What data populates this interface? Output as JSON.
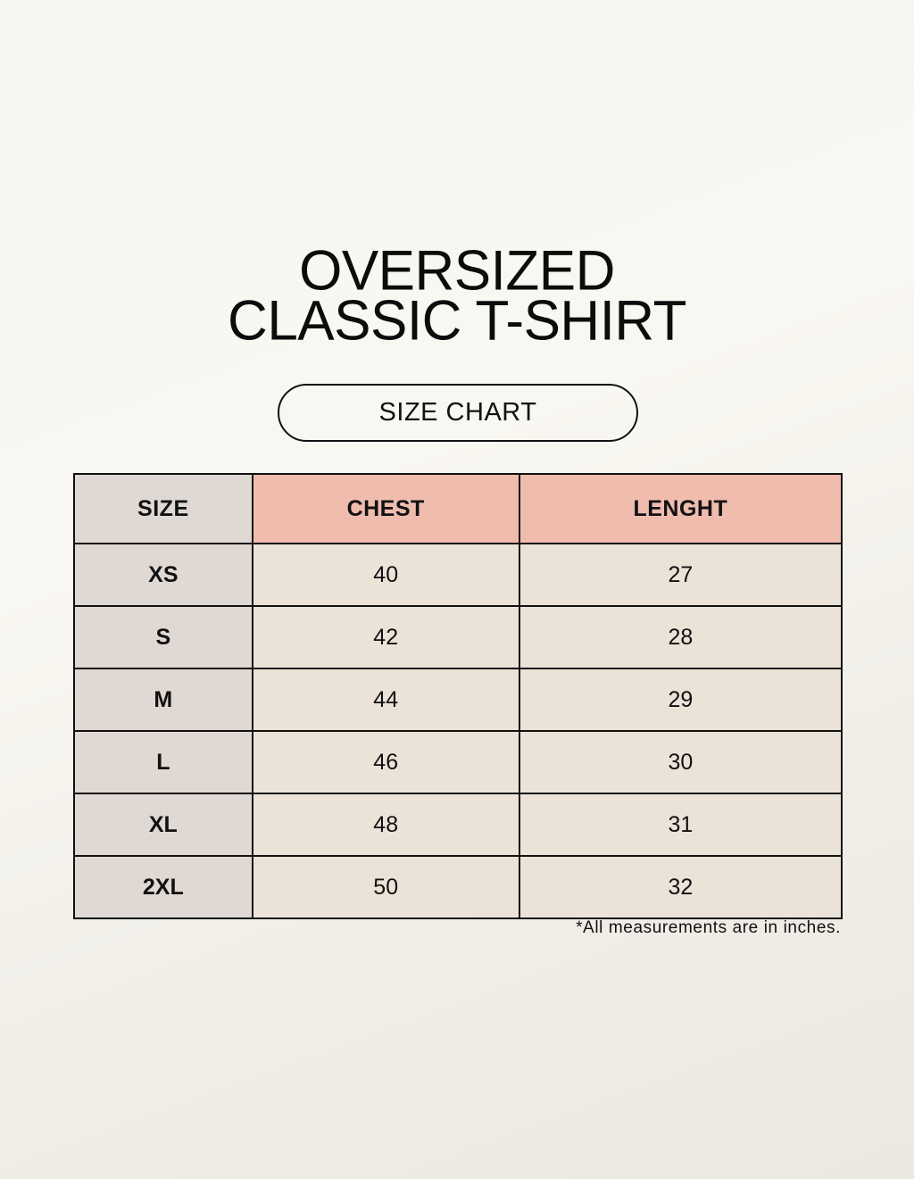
{
  "title": {
    "line1": "OVERSIZED",
    "line2": "CLASSIC T-SHIRT"
  },
  "badge": "SIZE CHART",
  "table": {
    "headers": [
      "SIZE",
      "CHEST",
      "LENGHT"
    ],
    "rows": [
      [
        "XS",
        "40",
        "27"
      ],
      [
        "S",
        "42",
        "28"
      ],
      [
        "M",
        "44",
        "29"
      ],
      [
        "L",
        "46",
        "30"
      ],
      [
        "XL",
        "48",
        "31"
      ],
      [
        "2XL",
        "50",
        "32"
      ]
    ]
  },
  "note": "*All measurements are in inches.",
  "colors": {
    "size_column": "#e0d8d3",
    "header_accent": "#efbcae",
    "cell": "#ebe3d8"
  }
}
